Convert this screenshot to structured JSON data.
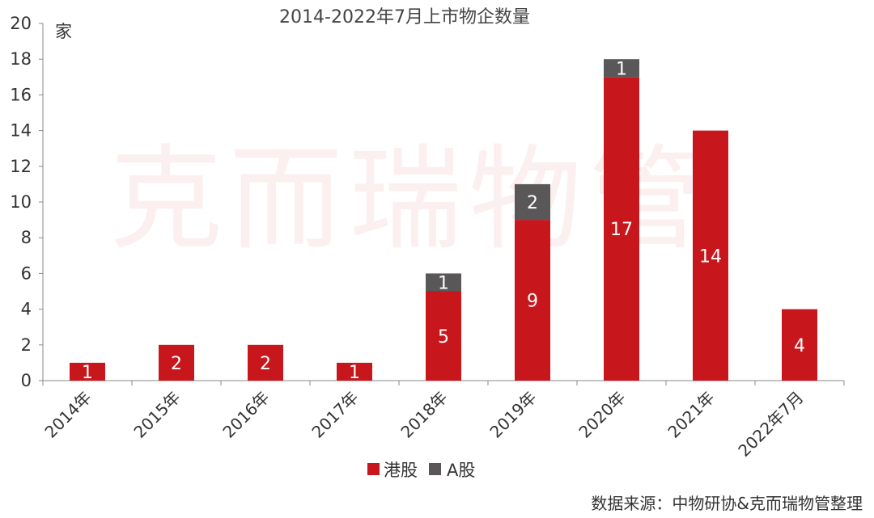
{
  "chart_data": {
    "type": "bar",
    "stacked": true,
    "title": "2014-2022年7月上市物企数量",
    "unit": "家",
    "categories": [
      "2014年",
      "2015年",
      "2016年",
      "2017年",
      "2018年",
      "2019年",
      "2020年",
      "2021年",
      "2022年7月"
    ],
    "series": [
      {
        "name": "港股",
        "color": "#c8161d",
        "values": [
          1,
          2,
          2,
          1,
          5,
          9,
          17,
          14,
          4
        ]
      },
      {
        "name": "A股",
        "color": "#595757",
        "values": [
          0,
          0,
          0,
          0,
          1,
          2,
          1,
          0,
          0
        ]
      }
    ],
    "ylim": [
      0,
      20
    ],
    "yticks": [
      0,
      2,
      4,
      6,
      8,
      10,
      12,
      14,
      16,
      18,
      20
    ],
    "grid": false,
    "legend_position": "bottom"
  },
  "watermark": "克而瑞物管",
  "source": "数据来源：中物研协&克而瑞物管整理"
}
